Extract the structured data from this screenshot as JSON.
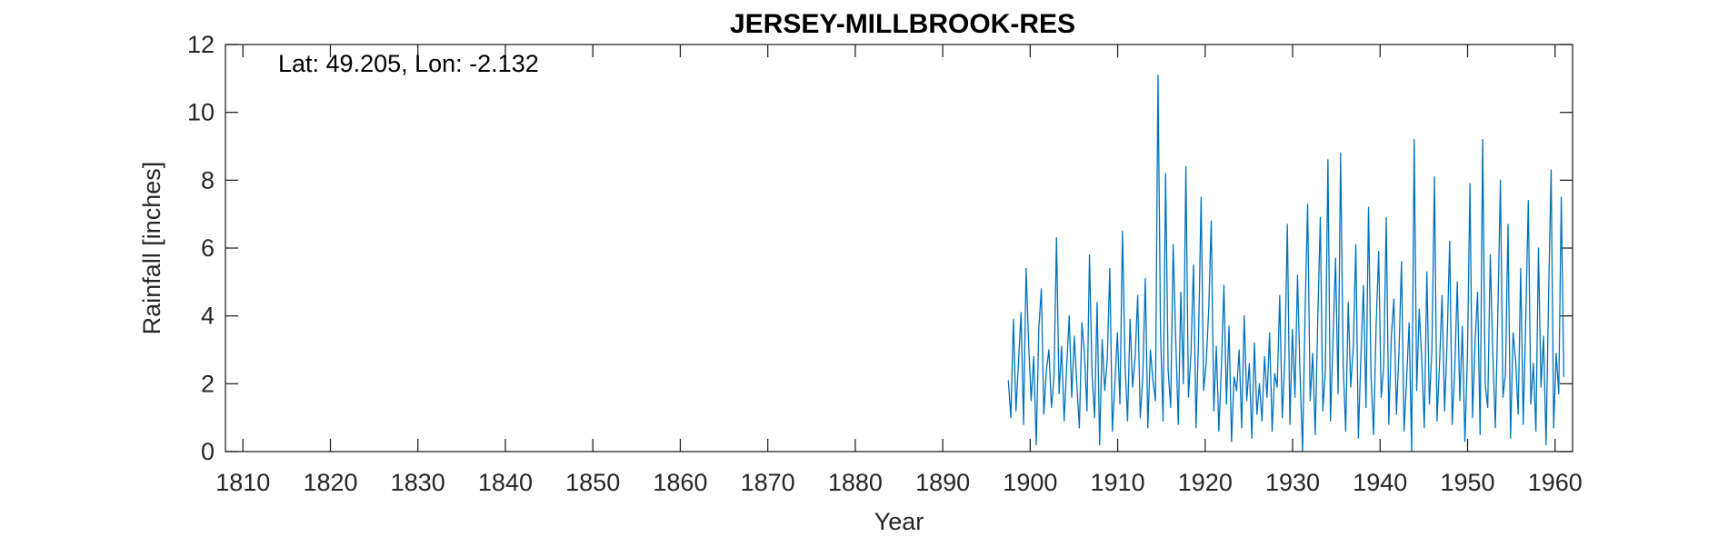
{
  "chart_data": {
    "type": "line",
    "title": "JERSEY-MILLBROOK-RES",
    "xlabel": "Year",
    "ylabel": "Rainfall [inches]",
    "annotation": "Lat: 49.205, Lon: -2.132",
    "xlim": [
      1808,
      1962
    ],
    "ylim": [
      0,
      12
    ],
    "xticks": [
      1810,
      1820,
      1830,
      1840,
      1850,
      1860,
      1870,
      1880,
      1890,
      1900,
      1910,
      1920,
      1930,
      1940,
      1950,
      1960
    ],
    "yticks": [
      0,
      2,
      4,
      6,
      8,
      10,
      12
    ],
    "grid": false,
    "line_color": "#0072bd",
    "series": [
      {
        "start_year": 1897.5,
        "end_year": 1961.0,
        "interval": "monthly",
        "values": [
          2.1,
          1.0,
          3.9,
          1.2,
          2.6,
          4.1,
          0.8,
          5.4,
          3.2,
          1.5,
          2.8,
          0.2,
          3.6,
          4.8,
          1.1,
          2.4,
          3.0,
          1.3,
          2.2,
          6.3,
          1.7,
          3.1,
          0.9,
          2.5,
          4.0,
          1.6,
          3.4,
          2.0,
          0.7,
          3.8,
          2.9,
          1.2,
          5.8,
          2.3,
          1.0,
          4.4,
          0.2,
          3.3,
          1.8,
          2.7,
          5.4,
          0.6,
          2.0,
          3.5,
          1.4,
          6.5,
          2.6,
          0.9,
          3.9,
          1.9,
          2.8,
          4.6,
          1.0,
          2.2,
          5.1,
          0.7,
          3.0,
          2.1,
          1.5,
          11.1,
          3.5,
          0.9,
          8.2,
          2.4,
          1.3,
          6.1,
          3.3,
          0.8,
          4.7,
          2.0,
          8.4,
          1.6,
          2.9,
          5.5,
          0.7,
          3.4,
          7.5,
          1.8,
          2.6,
          4.2,
          6.8,
          1.2,
          3.1,
          0.6,
          2.5,
          4.9,
          1.4,
          3.7,
          0.3,
          2.2,
          1.8,
          3.0,
          0.7,
          4.0,
          1.5,
          2.6,
          0.4,
          3.2,
          1.1,
          2.0,
          0.9,
          2.8,
          1.6,
          3.5,
          0.6,
          2.3,
          1.9,
          4.6,
          1.0,
          2.7,
          6.7,
          0.8,
          3.6,
          1.6,
          5.2,
          2.3,
          0.0,
          4.1,
          7.3,
          1.5,
          2.9,
          0.5,
          3.9,
          6.9,
          1.2,
          2.4,
          8.6,
          0.9,
          3.3,
          5.7,
          1.7,
          8.8,
          2.6,
          0.6,
          4.4,
          1.9,
          3.1,
          6.1,
          0.4,
          2.8,
          4.9,
          1.3,
          7.2,
          2.2,
          0.5,
          3.7,
          5.9,
          1.6,
          2.5,
          6.9,
          0.8,
          3.4,
          4.5,
          1.1,
          2.9,
          5.6,
          0.6,
          2.1,
          3.8,
          0.0,
          9.2,
          1.8,
          4.2,
          2.7,
          0.7,
          5.3,
          1.4,
          3.0,
          8.1,
          0.9,
          2.6,
          4.6,
          1.2,
          3.3,
          6.2,
          0.8,
          2.4,
          5.0,
          1.5,
          3.7,
          0.3,
          2.8,
          7.9,
          1.0,
          3.2,
          4.7,
          0.5,
          9.2,
          2.0,
          1.3,
          5.8,
          2.9,
          0.7,
          4.1,
          8.0,
          1.6,
          2.3,
          6.7,
          0.4,
          3.5,
          2.7,
          1.1,
          5.4,
          0.8,
          3.9,
          7.4,
          1.4,
          2.6,
          0.6,
          6.0,
          1.9,
          3.4,
          0.2,
          4.6,
          8.3,
          0.7,
          2.9,
          1.7,
          7.5,
          2.2
        ]
      }
    ]
  }
}
